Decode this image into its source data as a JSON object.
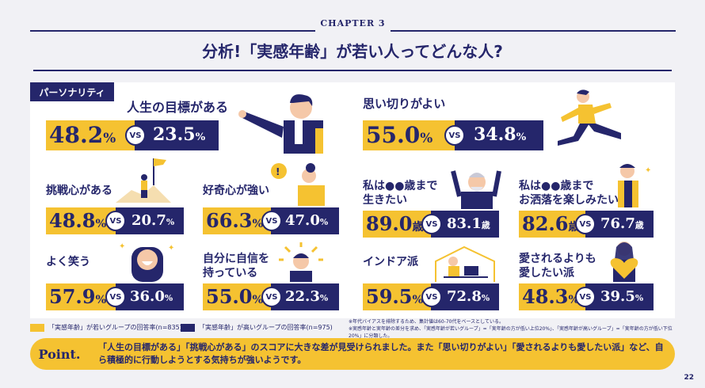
{
  "header": {
    "chapter": "CHAPTER 3",
    "title": "分析!「実感年齢」が若い人ってどんな人?"
  },
  "section_tag": "パーソナリティ",
  "items": {
    "goal": {
      "label": "人生の目標がある",
      "young": "48.2",
      "old": "23.5",
      "unit": "%"
    },
    "decisive": {
      "label": "思い切りがよい",
      "young": "55.0",
      "old": "34.8",
      "unit": "%"
    },
    "challenge": {
      "label": "挑戦心がある",
      "young": "48.8",
      "old": "20.7",
      "unit": "%"
    },
    "curiosity": {
      "label": "好奇心が強い",
      "young": "66.3",
      "old": "47.0",
      "unit": "%"
    },
    "live_until": {
      "label_1": "私は●●歳まで",
      "label_2": "生きたい",
      "young": "89.0",
      "old": "83.1",
      "unit": "歳"
    },
    "fashion_until": {
      "label_1": "私は●●歳まで",
      "label_2": "お洒落を楽しみたい",
      "young": "82.6",
      "old": "76.7",
      "unit": "歳"
    },
    "laugh": {
      "label": "よく笑う",
      "young": "57.9",
      "old": "36.0",
      "unit": "%"
    },
    "confidence": {
      "label_1": "自分に自信を",
      "label_2": "持っている",
      "young": "55.0",
      "old": "22.3",
      "unit": "%"
    },
    "indoor": {
      "label": "インドア派",
      "young": "59.5",
      "old": "72.8",
      "unit": "%"
    },
    "love": {
      "label_1": "愛されるよりも",
      "label_2": "愛したい派",
      "young": "48.3",
      "old": "39.5",
      "unit": "%"
    }
  },
  "vs_label": "VS",
  "legend": {
    "young": "「実感年齢」が若いグループの回答率(n=835)",
    "old": "「実感年齢」が高いグループの回答率(n=975)"
  },
  "notes": [
    "※年代バイアスを排除するため、集計値は60-70代をベースとしている。",
    "※実感年齢と実年齢の差分を求め、「実感年齢が若いグループ」=「実年齢の方が低い上位20%」、「実感年齢が高いグループ」=「実年齢の方が低い下位20%」に分類した。"
  ],
  "point": {
    "label": "Point.",
    "text": "「人生の目標がある」「挑戦心がある」のスコアに大きな差が見受けられました。また「思い切りがよい」「愛されるよりも愛したい派」など、自ら積極的に行動しようとする気持ちが強いようです。"
  },
  "page_number": "22",
  "colors": {
    "yellow": "#f5c231",
    "navy": "#25266b",
    "background": "#f1f1f5"
  }
}
